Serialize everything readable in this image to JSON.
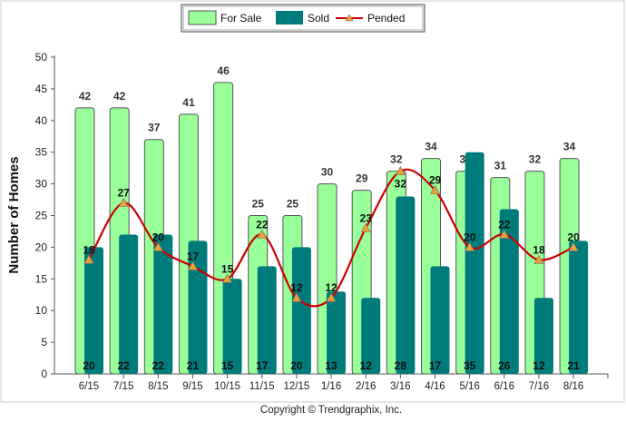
{
  "chart_data": {
    "type": "bar",
    "title": "",
    "xlabel": "",
    "ylabel": "Number of Homes",
    "ylim": [
      0,
      50
    ],
    "yticks": [
      0,
      5,
      10,
      15,
      20,
      25,
      30,
      35,
      40,
      45,
      50
    ],
    "categories": [
      "6/15",
      "7/15",
      "8/15",
      "9/15",
      "10/15",
      "11/15",
      "12/15",
      "1/16",
      "2/16",
      "3/16",
      "4/16",
      "5/16",
      "6/16",
      "7/16",
      "8/16"
    ],
    "series": [
      {
        "name": "For Sale",
        "type": "bar",
        "color": "#99ff99",
        "values": [
          42,
          42,
          37,
          41,
          46,
          25,
          25,
          30,
          29,
          32,
          34,
          32,
          31,
          32,
          34
        ]
      },
      {
        "name": "Sold",
        "type": "bar",
        "color": "#007b7b",
        "values": [
          20,
          22,
          22,
          21,
          15,
          17,
          20,
          13,
          12,
          28,
          17,
          35,
          26,
          12,
          21
        ]
      },
      {
        "name": "Pended",
        "type": "line",
        "color": "#cc0000",
        "marker_color": "#f0a030",
        "values": [
          18,
          27,
          20,
          17,
          15,
          22,
          12,
          12,
          23,
          32,
          29,
          20,
          22,
          18,
          20
        ]
      }
    ],
    "legend": "top-center",
    "footer": "Copyright © Trendgraphix, Inc."
  }
}
